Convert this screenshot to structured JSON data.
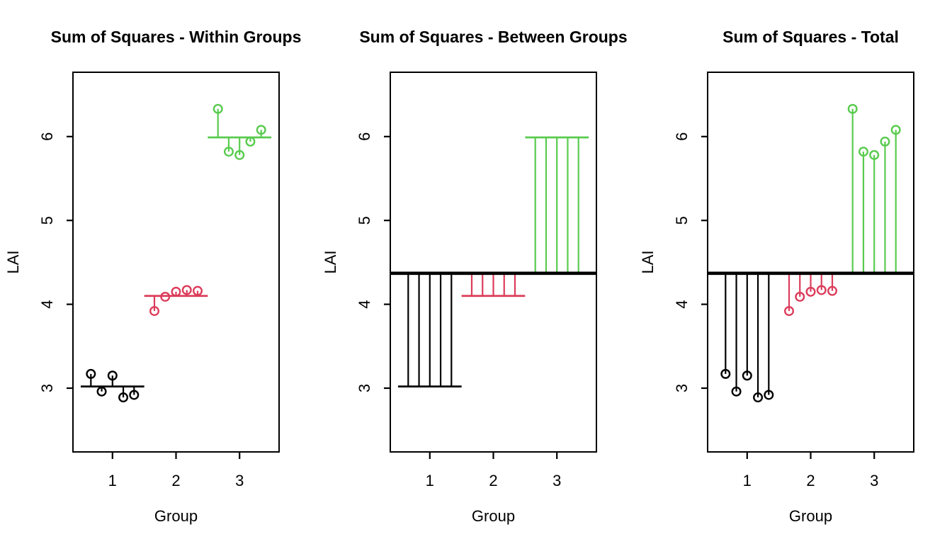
{
  "figure": {
    "background": "#ffffff",
    "panel_titles": [
      "Sum of Squares - Within Groups",
      "Sum of Squares - Between Groups",
      "Sum of Squares - Total"
    ]
  },
  "chart_data": [
    {
      "type": "scatter",
      "title": "Sum of Squares - Within Groups",
      "xlabel": "Group",
      "ylabel": "LAI",
      "xticks": [
        1,
        2,
        3
      ],
      "yticks": [
        3,
        4,
        5,
        6
      ],
      "xlim": [
        0.37,
        3.63
      ],
      "ylim": [
        2.24,
        6.79
      ],
      "grid": false,
      "legend": "none",
      "segments": "point-to-group-mean",
      "show_points": true,
      "show_group_mean_lines": true,
      "show_grand_mean_line": false,
      "grand_mean": 4.37,
      "group_mean_halfspan": 0.5,
      "x_offsets": [
        -0.34,
        -0.17,
        0,
        0.17,
        0.34
      ],
      "groups": [
        {
          "group": 1,
          "color": "#000000",
          "mean": 3.02,
          "values": [
            3.17,
            2.96,
            3.15,
            2.89,
            2.92
          ]
        },
        {
          "group": 2,
          "color": "#dc3c5a",
          "mean": 4.1,
          "values": [
            3.92,
            4.09,
            4.15,
            4.17,
            4.16
          ]
        },
        {
          "group": 3,
          "color": "#58cb4e",
          "mean": 5.99,
          "values": [
            6.33,
            5.82,
            5.78,
            5.94,
            6.08
          ]
        }
      ]
    },
    {
      "type": "scatter",
      "title": "Sum of Squares - Between Groups",
      "xlabel": "Group",
      "ylabel": "LAI",
      "xticks": [
        1,
        2,
        3
      ],
      "yticks": [
        3,
        4,
        5,
        6
      ],
      "xlim": [
        0.37,
        3.63
      ],
      "ylim": [
        2.24,
        6.79
      ],
      "grid": false,
      "legend": "none",
      "segments": "group-mean-to-grand-mean",
      "show_points": false,
      "show_group_mean_lines": true,
      "show_grand_mean_line": true,
      "grand_mean": 4.37,
      "group_mean_halfspan": 0.5,
      "x_offsets": [
        -0.34,
        -0.17,
        0,
        0.17,
        0.34
      ],
      "groups": [
        {
          "group": 1,
          "color": "#000000",
          "mean": 3.02,
          "values": [
            3.17,
            2.96,
            3.15,
            2.89,
            2.92
          ]
        },
        {
          "group": 2,
          "color": "#dc3c5a",
          "mean": 4.1,
          "values": [
            3.92,
            4.09,
            4.15,
            4.17,
            4.16
          ]
        },
        {
          "group": 3,
          "color": "#58cb4e",
          "mean": 5.99,
          "values": [
            6.33,
            5.82,
            5.78,
            5.94,
            6.08
          ]
        }
      ]
    },
    {
      "type": "scatter",
      "title": "Sum of Squares - Total",
      "xlabel": "Group",
      "ylabel": "LAI",
      "xticks": [
        1,
        2,
        3
      ],
      "yticks": [
        3,
        4,
        5,
        6
      ],
      "xlim": [
        0.37,
        3.63
      ],
      "ylim": [
        2.24,
        6.79
      ],
      "grid": false,
      "legend": "none",
      "segments": "point-to-grand-mean",
      "show_points": true,
      "show_group_mean_lines": false,
      "show_grand_mean_line": true,
      "grand_mean": 4.37,
      "group_mean_halfspan": 0.5,
      "x_offsets": [
        -0.34,
        -0.17,
        0,
        0.17,
        0.34
      ],
      "groups": [
        {
          "group": 1,
          "color": "#000000",
          "mean": 3.02,
          "values": [
            3.17,
            2.96,
            3.15,
            2.89,
            2.92
          ]
        },
        {
          "group": 2,
          "color": "#dc3c5a",
          "mean": 4.1,
          "values": [
            3.92,
            4.09,
            4.15,
            4.17,
            4.16
          ]
        },
        {
          "group": 3,
          "color": "#58cb4e",
          "mean": 5.99,
          "values": [
            6.33,
            5.82,
            5.78,
            5.94,
            6.08
          ]
        }
      ]
    }
  ]
}
